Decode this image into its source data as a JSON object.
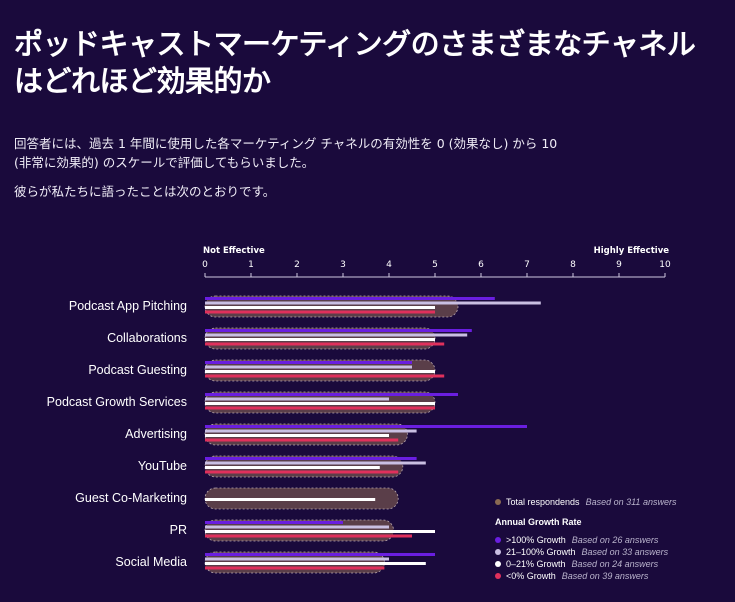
{
  "title_line1": "ポッドキャストマーケティングのさまざまなチャネル",
  "title_line2": "はどれほど効果的か",
  "description_line1": "回答者には、過去 1 年間に使用した各マーケティング チャネルの有効性を 0 (効果なし) から 10",
  "description_line2": "(非常に効果的) のスケールで評価してもらいました。",
  "description_line3": "彼らが私たちに語ったことは次のとおりです。",
  "colors": {
    "background": "#1a0a3c",
    "total": "#5a3e49",
    "growth_100_plus": "#6a1ee0",
    "growth_21_100": "#c9bfe2",
    "growth_0_21": "#ffffff",
    "growth_negative": "#e0305c"
  },
  "chart_data": {
    "type": "bar",
    "orientation": "horizontal",
    "axis_low_label": "Not Effective",
    "axis_high_label": "Highly Effective",
    "xlim": [
      0,
      10
    ],
    "ticks": [
      "0",
      "1",
      "2",
      "3",
      "4",
      "5",
      "6",
      "7",
      "8",
      "9",
      "10"
    ],
    "categories": [
      "Podcast App Pitching",
      "Collaborations",
      "Podcast Guesting",
      "Podcast Growth Services",
      "Advertising",
      "YouTube",
      "Guest Co-Marketing",
      "PR",
      "Social Media"
    ],
    "series": [
      {
        "name": "Total respondends",
        "note": "Based on 311 answers",
        "values": [
          5.5,
          5.0,
          5.0,
          5.0,
          4.4,
          4.3,
          4.2,
          4.1,
          3.9
        ]
      },
      {
        "name": ">100% Growth",
        "note": "Based on 26 answers",
        "values": [
          6.3,
          5.8,
          4.5,
          5.5,
          7.0,
          4.6,
          null,
          3.0,
          5.0
        ]
      },
      {
        "name": "21–100% Growth",
        "note": "Based on 33 answers",
        "values": [
          7.3,
          5.7,
          4.5,
          4.0,
          4.6,
          4.8,
          null,
          4.0,
          4.0
        ]
      },
      {
        "name": "0–21% Growth",
        "note": "Based on 24 answers",
        "values": [
          5.0,
          5.0,
          5.0,
          5.0,
          4.0,
          3.8,
          3.7,
          5.0,
          4.8
        ]
      },
      {
        "name": "<0% Growth",
        "note": "Based on 39 answers",
        "values": [
          5.0,
          5.2,
          5.2,
          5.0,
          4.2,
          4.2,
          null,
          4.5,
          3.9
        ]
      }
    ],
    "legend_header": "Annual Growth Rate"
  }
}
